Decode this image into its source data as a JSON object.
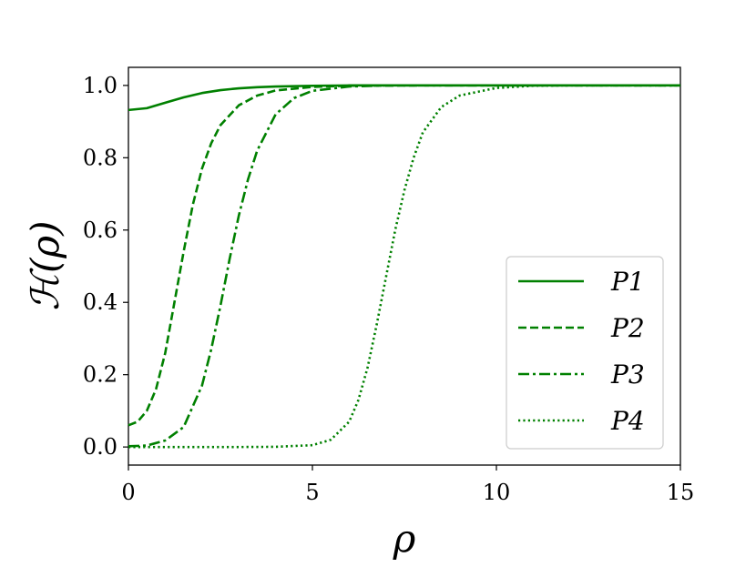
{
  "chart_data": {
    "type": "line",
    "xlabel": "ρ",
    "ylabel": "ℋ(ρ)",
    "xlim": [
      0,
      15
    ],
    "ylim": [
      -0.05,
      1.05
    ],
    "xticks": [
      0,
      5,
      10,
      15
    ],
    "xtick_labels": [
      "0",
      "5",
      "10",
      "15"
    ],
    "yticks": [
      0.0,
      0.2,
      0.4,
      0.6,
      0.8,
      1.0
    ],
    "ytick_labels": [
      "0.0",
      "0.2",
      "0.4",
      "0.6",
      "0.8",
      "1.0"
    ],
    "grid": false,
    "legend_position": "lower-right",
    "color": "#008000",
    "series": [
      {
        "name": "P1",
        "style": "solid",
        "x": [
          0,
          0.5,
          1,
          1.5,
          2,
          2.5,
          3,
          3.5,
          4,
          5,
          6,
          8,
          10,
          15
        ],
        "y": [
          0.932,
          0.937,
          0.952,
          0.967,
          0.979,
          0.987,
          0.992,
          0.995,
          0.997,
          0.999,
          1.0,
          1.0,
          1.0,
          1.0
        ]
      },
      {
        "name": "P2",
        "style": "dashed",
        "x": [
          0,
          0.25,
          0.5,
          0.75,
          1,
          1.25,
          1.5,
          1.75,
          2,
          2.25,
          2.5,
          3,
          3.5,
          4,
          5,
          6,
          8,
          15
        ],
        "y": [
          0.06,
          0.07,
          0.1,
          0.16,
          0.26,
          0.4,
          0.54,
          0.67,
          0.77,
          0.84,
          0.89,
          0.945,
          0.972,
          0.986,
          0.996,
          0.999,
          1.0,
          1.0
        ]
      },
      {
        "name": "P3",
        "style": "dashdot",
        "x": [
          0,
          0.5,
          1,
          1.5,
          2,
          2.25,
          2.5,
          2.75,
          3,
          3.25,
          3.5,
          4,
          4.5,
          5,
          6,
          7,
          8,
          15
        ],
        "y": [
          0.002,
          0.004,
          0.018,
          0.055,
          0.17,
          0.27,
          0.39,
          0.52,
          0.64,
          0.74,
          0.82,
          0.92,
          0.965,
          0.985,
          0.997,
          1.0,
          1.0,
          1.0
        ]
      },
      {
        "name": "P4",
        "style": "dotted",
        "x": [
          0,
          3,
          4,
          5,
          5.5,
          6,
          6.25,
          6.5,
          6.75,
          7,
          7.25,
          7.5,
          7.75,
          8,
          8.5,
          9,
          10,
          11,
          12,
          15
        ],
        "y": [
          0.0,
          0.0,
          0.0005,
          0.005,
          0.02,
          0.07,
          0.13,
          0.22,
          0.34,
          0.47,
          0.6,
          0.71,
          0.8,
          0.87,
          0.94,
          0.972,
          0.993,
          0.999,
          1.0,
          1.0
        ]
      }
    ]
  }
}
